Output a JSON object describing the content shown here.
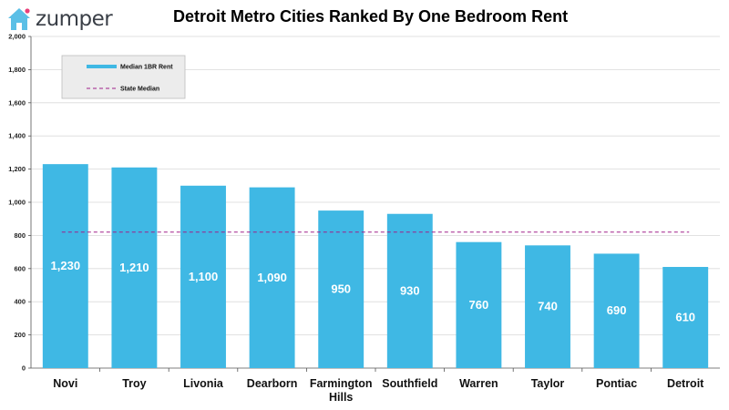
{
  "brand": {
    "logo_text": "zumper",
    "house_color": "#5bbfe6",
    "dot_color": "#e8407a"
  },
  "colors": {
    "bar": "#3fb8e4",
    "median_line": "#a0208a",
    "grid": "#d9d9d9",
    "legend_bg": "#ececec"
  },
  "chart_data": {
    "type": "bar",
    "title": "Detroit Metro Cities Ranked By One Bedroom Rent",
    "categories": [
      "Novi",
      "Troy",
      "Livonia",
      "Dearborn",
      "Farmington Hills",
      "Southfield",
      "Warren",
      "Taylor",
      "Pontiac",
      "Detroit"
    ],
    "series": [
      {
        "name": "Median 1BR Rent",
        "values": [
          1230,
          1210,
          1100,
          1090,
          950,
          930,
          760,
          740,
          690,
          610
        ]
      }
    ],
    "data_labels": [
      "1,230",
      "1,210",
      "1,100",
      "1,090",
      "950",
      "930",
      "760",
      "740",
      "690",
      "610"
    ],
    "reference_line": {
      "name": "State Median",
      "value": 820,
      "style": "dashed"
    },
    "ylim": [
      0,
      2000
    ],
    "yticks": [
      0,
      200,
      400,
      600,
      800,
      1000,
      1200,
      1400,
      1600,
      1800,
      2000
    ],
    "ytick_labels": [
      "0",
      "200",
      "400",
      "600",
      "800",
      "1,000",
      "1,200",
      "1,400",
      "1,600",
      "1,800",
      "2,000"
    ],
    "grid": true,
    "legend": "top-left"
  }
}
